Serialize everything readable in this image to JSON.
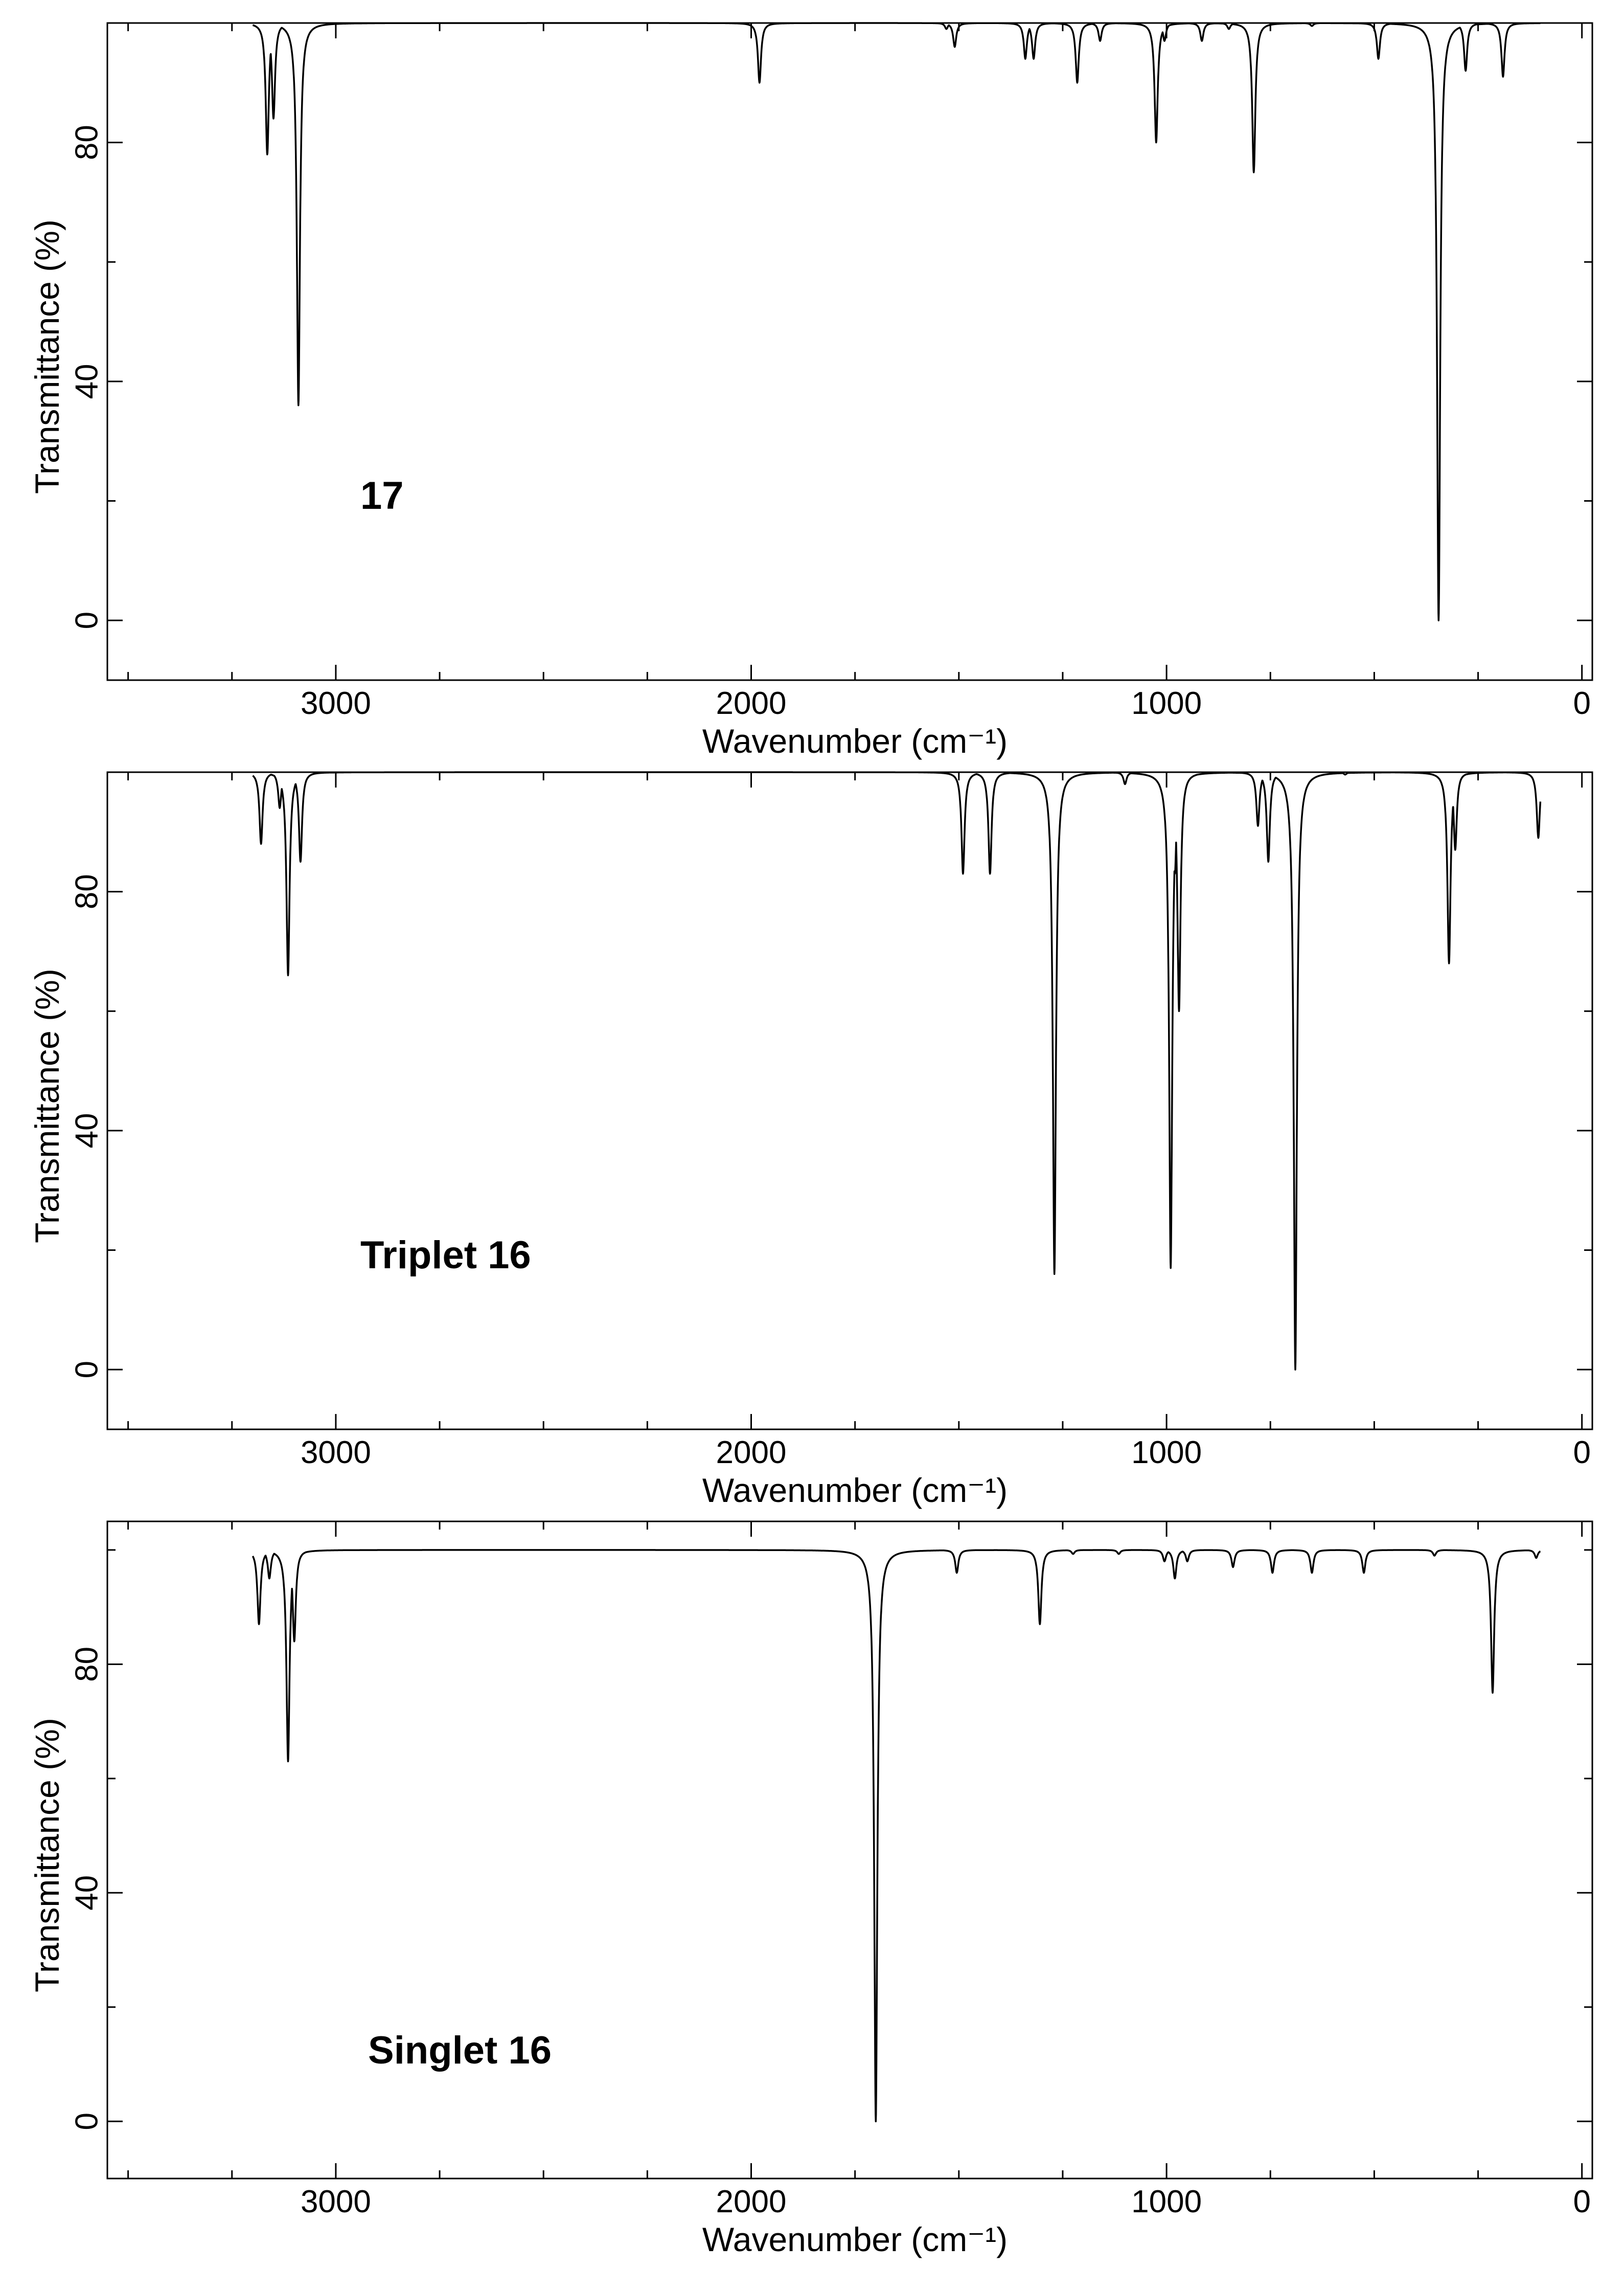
{
  "chart_data": [
    {
      "type": "line",
      "annotation": "17",
      "xlabel": "Wavenumber (cm⁻¹)",
      "ylabel": "Transmittance (%)",
      "xlim": [
        3550,
        -25
      ],
      "ylim": [
        -10,
        100
      ],
      "x_ticks": [
        3000,
        2000,
        1000,
        0
      ],
      "y_ticks": [
        0,
        40,
        80
      ],
      "grid": false,
      "line_color": "#000000",
      "spectrum_range": [
        3200,
        100
      ],
      "peaks": [
        {
          "x": 3165,
          "y": 78
        },
        {
          "x": 3150,
          "y": 84
        },
        {
          "x": 3090,
          "y": 36
        },
        {
          "x": 1980,
          "y": 90
        },
        {
          "x": 1530,
          "y": 99
        },
        {
          "x": 1510,
          "y": 96
        },
        {
          "x": 1340,
          "y": 94
        },
        {
          "x": 1320,
          "y": 94
        },
        {
          "x": 1215,
          "y": 90
        },
        {
          "x": 1160,
          "y": 97
        },
        {
          "x": 1025,
          "y": 80
        },
        {
          "x": 1005,
          "y": 97
        },
        {
          "x": 915,
          "y": 97
        },
        {
          "x": 850,
          "y": 99
        },
        {
          "x": 790,
          "y": 75
        },
        {
          "x": 650,
          "y": 99.5
        },
        {
          "x": 490,
          "y": 94
        },
        {
          "x": 345,
          "y": 0
        },
        {
          "x": 280,
          "y": 92
        },
        {
          "x": 190,
          "y": 91
        }
      ]
    },
    {
      "type": "line",
      "annotation": "Triplet 16",
      "xlabel": "Wavenumber (cm⁻¹)",
      "ylabel": "Transmittance (%)",
      "xlim": [
        3550,
        -25
      ],
      "ylim": [
        -10,
        100
      ],
      "x_ticks": [
        3000,
        2000,
        1000,
        0
      ],
      "y_ticks": [
        0,
        40,
        80
      ],
      "grid": false,
      "line_color": "#000000",
      "spectrum_range": [
        3200,
        100
      ],
      "peaks": [
        {
          "x": 3180,
          "y": 88
        },
        {
          "x": 3135,
          "y": 94
        },
        {
          "x": 3115,
          "y": 66
        },
        {
          "x": 3085,
          "y": 85
        },
        {
          "x": 1490,
          "y": 83
        },
        {
          "x": 1425,
          "y": 83
        },
        {
          "x": 1270,
          "y": 16
        },
        {
          "x": 1230,
          "y": 99
        },
        {
          "x": 1100,
          "y": 98
        },
        {
          "x": 1000,
          "y": 98
        },
        {
          "x": 990,
          "y": 17
        },
        {
          "x": 980,
          "y": 83
        },
        {
          "x": 970,
          "y": 60
        },
        {
          "x": 780,
          "y": 91
        },
        {
          "x": 755,
          "y": 85
        },
        {
          "x": 690,
          "y": 0
        },
        {
          "x": 570,
          "y": 99.6
        },
        {
          "x": 320,
          "y": 68
        },
        {
          "x": 305,
          "y": 87
        },
        {
          "x": 105,
          "y": 89
        }
      ]
    },
    {
      "type": "line",
      "annotation": "Singlet 16",
      "xlabel": "Wavenumber (cm⁻¹)",
      "ylabel": "Transmittance (%)",
      "xlim": [
        3550,
        -25
      ],
      "ylim": [
        -10,
        105
      ],
      "x_ticks": [
        3000,
        2000,
        1000,
        0
      ],
      "y_ticks": [
        0,
        40,
        80
      ],
      "grid": false,
      "line_color": "#000000",
      "spectrum_range": [
        3200,
        100
      ],
      "peaks": [
        {
          "x": 3185,
          "y": 87
        },
        {
          "x": 3160,
          "y": 95
        },
        {
          "x": 3115,
          "y": 63
        },
        {
          "x": 3100,
          "y": 84
        },
        {
          "x": 1700,
          "y": 0
        },
        {
          "x": 1505,
          "y": 96
        },
        {
          "x": 1305,
          "y": 87
        },
        {
          "x": 1225,
          "y": 99.3
        },
        {
          "x": 1115,
          "y": 99.3
        },
        {
          "x": 1005,
          "y": 98
        },
        {
          "x": 980,
          "y": 95
        },
        {
          "x": 950,
          "y": 98
        },
        {
          "x": 840,
          "y": 97
        },
        {
          "x": 745,
          "y": 96
        },
        {
          "x": 650,
          "y": 96
        },
        {
          "x": 525,
          "y": 96
        },
        {
          "x": 355,
          "y": 99
        },
        {
          "x": 215,
          "y": 75
        },
        {
          "x": 110,
          "y": 98.6
        }
      ]
    }
  ]
}
